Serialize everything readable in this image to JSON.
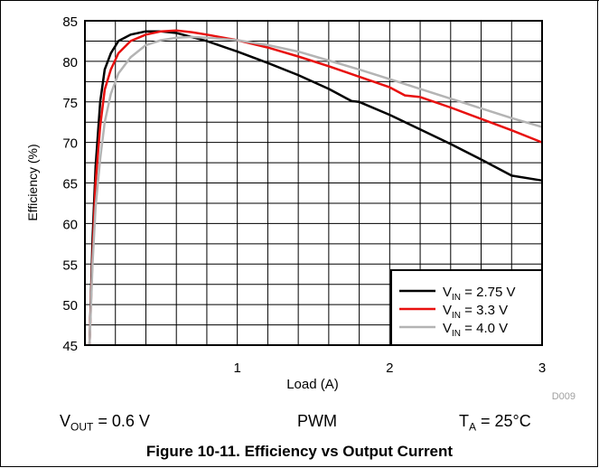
{
  "chart_data": {
    "type": "line",
    "xlabel": "Load (A)",
    "ylabel": "Efficiency (%)",
    "xlim": [
      0,
      3
    ],
    "ylim": [
      45,
      85
    ],
    "x_ticks": [
      "1",
      "2",
      "3"
    ],
    "y_ticks": [
      "45",
      "50",
      "55",
      "60",
      "65",
      "70",
      "75",
      "80",
      "85"
    ],
    "grid": true,
    "legend_position": "bottom-right",
    "figure_id": "D009",
    "series": [
      {
        "name": "V_IN = 2.75 V",
        "label_main": "V",
        "label_sub": "IN",
        "label_rest": " = 2.75 V",
        "color": "#000000",
        "x": [
          0.03,
          0.05,
          0.07,
          0.1,
          0.13,
          0.17,
          0.22,
          0.3,
          0.4,
          0.5,
          0.6,
          0.8,
          1.0,
          1.2,
          1.4,
          1.6,
          1.75,
          1.8,
          2.0,
          2.2,
          2.4,
          2.6,
          2.8,
          3.0
        ],
        "y": [
          45,
          58,
          67,
          75,
          79,
          81,
          82.5,
          83.3,
          83.7,
          83.7,
          83.5,
          82.5,
          81.2,
          79.8,
          78.3,
          76.6,
          75.1,
          75.0,
          73.4,
          71.6,
          69.8,
          67.9,
          65.9,
          65.3
        ]
      },
      {
        "name": "V_IN = 3.3 V",
        "label_main": "V",
        "label_sub": "IN",
        "label_rest": " = 3.3 V",
        "color": "#e8100f",
        "x": [
          0.03,
          0.05,
          0.07,
          0.1,
          0.13,
          0.17,
          0.22,
          0.3,
          0.4,
          0.5,
          0.6,
          0.7,
          0.8,
          1.0,
          1.2,
          1.4,
          1.6,
          1.8,
          2.0,
          2.1,
          2.2,
          2.4,
          2.6,
          2.8,
          3.0
        ],
        "y": [
          45,
          56,
          65,
          72,
          76.5,
          79,
          81,
          82.5,
          83.3,
          83.7,
          83.8,
          83.6,
          83.3,
          82.6,
          81.7,
          80.6,
          79.4,
          78.1,
          76.8,
          75.8,
          75.6,
          74.3,
          72.9,
          71.5,
          70.0
        ]
      },
      {
        "name": "V_IN = 4.0 V",
        "label_main": "V",
        "label_sub": "IN",
        "label_rest": " = 4.0 V",
        "color": "#b4b4b4",
        "x": [
          0.03,
          0.05,
          0.07,
          0.1,
          0.13,
          0.17,
          0.22,
          0.3,
          0.4,
          0.5,
          0.6,
          0.7,
          0.8,
          1.0,
          1.2,
          1.4,
          1.6,
          1.8,
          2.0,
          2.2,
          2.4,
          2.6,
          2.8,
          3.0
        ],
        "y": [
          45,
          55,
          62,
          68,
          72.5,
          76,
          78.5,
          80.5,
          82,
          82.6,
          82.9,
          83.0,
          82.9,
          82.6,
          82.0,
          81.2,
          80.1,
          79.0,
          77.8,
          76.6,
          75.4,
          74.2,
          73.0,
          71.9
        ]
      }
    ]
  },
  "footer": {
    "vout_main": "V",
    "vout_sub": "OUT",
    "vout_rest": " = 0.6 V",
    "mode": "PWM",
    "ta_main": "T",
    "ta_sub": "A",
    "ta_rest": " = 25°C"
  },
  "caption": "Figure 10-11. Efficiency vs Output Current"
}
